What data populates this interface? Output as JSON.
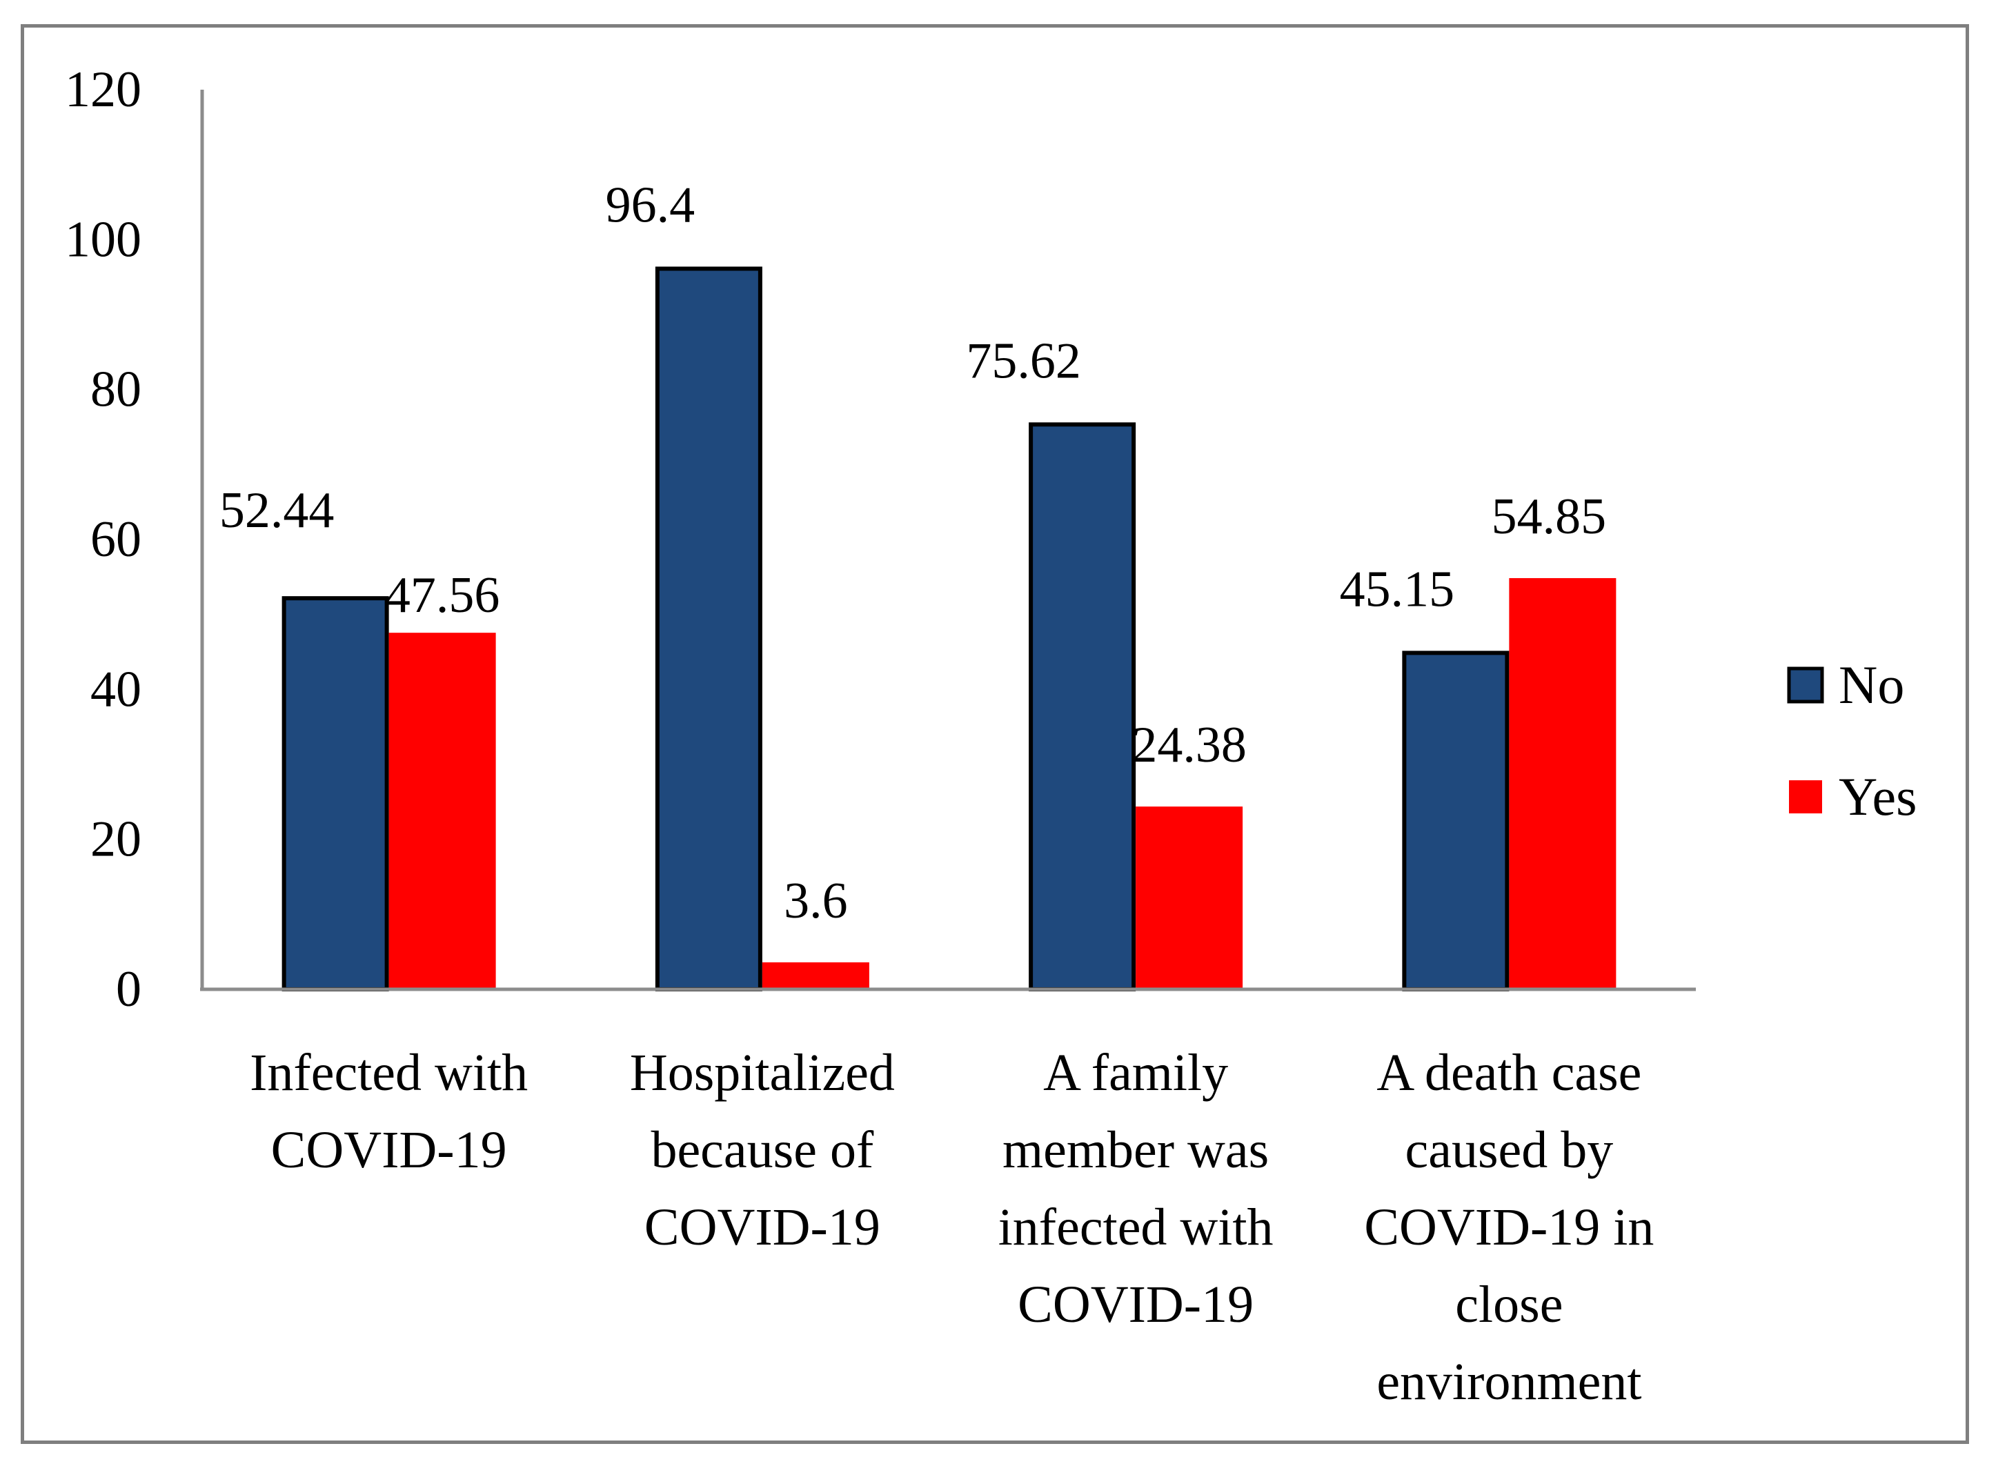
{
  "chart_data": {
    "type": "bar",
    "title": "",
    "xlabel": "",
    "ylabel": "",
    "ylim": [
      0,
      120
    ],
    "yticks": [
      0,
      20,
      40,
      60,
      80,
      100,
      120
    ],
    "grid": false,
    "legend_position": "right",
    "categories": [
      [
        "Infected with",
        "COVID-19"
      ],
      [
        "Hospitalized",
        "because of",
        "COVID-19"
      ],
      [
        "A family",
        "member was",
        "infected with",
        "COVID-19"
      ],
      [
        "A death case",
        "caused by",
        "COVID-19 in",
        "close",
        "environment"
      ]
    ],
    "series": [
      {
        "name": "No",
        "color": "#1f497d",
        "outlined": true,
        "values": [
          52.44,
          96.4,
          75.62,
          45.15
        ],
        "labels": [
          "52.44",
          "96.4",
          "75.62",
          "45.15"
        ]
      },
      {
        "name": "Yes",
        "color": "#ff0000",
        "outlined": false,
        "values": [
          47.56,
          3.6,
          24.38,
          54.85
        ],
        "labels": [
          "47.56",
          "3.6",
          "24.38",
          "54.85"
        ]
      }
    ]
  }
}
